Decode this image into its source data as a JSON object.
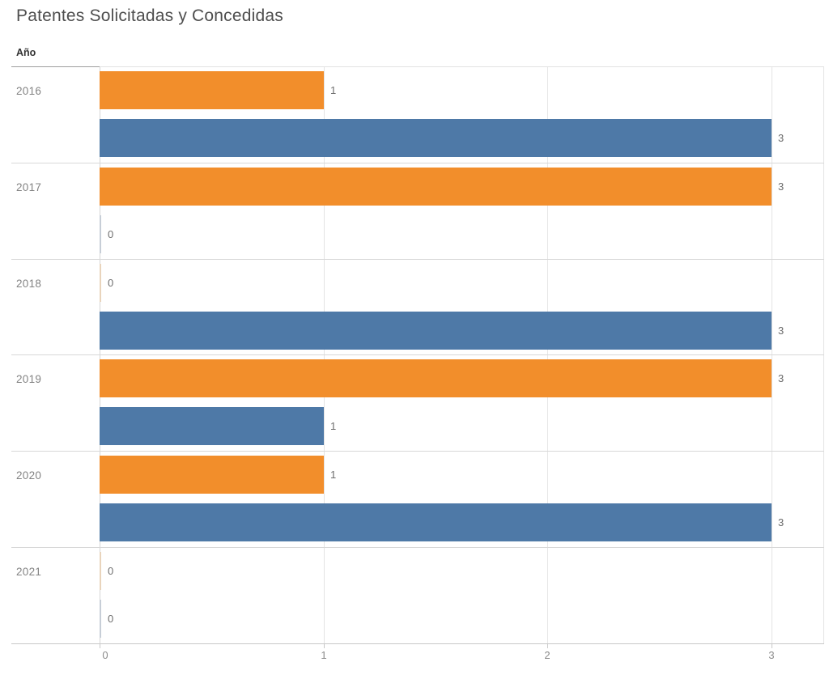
{
  "title": "Patentes Solicitadas y Concedidas",
  "row_header": "Año",
  "colors": {
    "bar_orange": "#f28e2b",
    "bar_blue": "#4e79a7",
    "bar_orange_zero_stub": "#e9d4bc",
    "bar_blue_zero_stub": "#c7ced7"
  },
  "chart_data": {
    "type": "bar",
    "orientation": "horizontal",
    "title": "Patentes Solicitadas y Concedidas",
    "category_axis_label": "Año",
    "categories": [
      "2016",
      "2017",
      "2018",
      "2019",
      "2020",
      "2021"
    ],
    "series": [
      {
        "name": "orange",
        "color": "#f28e2b",
        "values": [
          1,
          3,
          0,
          3,
          1,
          0
        ]
      },
      {
        "name": "blue",
        "color": "#4e79a7",
        "values": [
          3,
          0,
          3,
          1,
          3,
          0
        ]
      }
    ],
    "bar_labels_shown": true,
    "x_ticks": [
      0,
      1,
      2,
      3
    ],
    "xlim": [
      0,
      3.23
    ],
    "grid": true,
    "legend": "none"
  }
}
